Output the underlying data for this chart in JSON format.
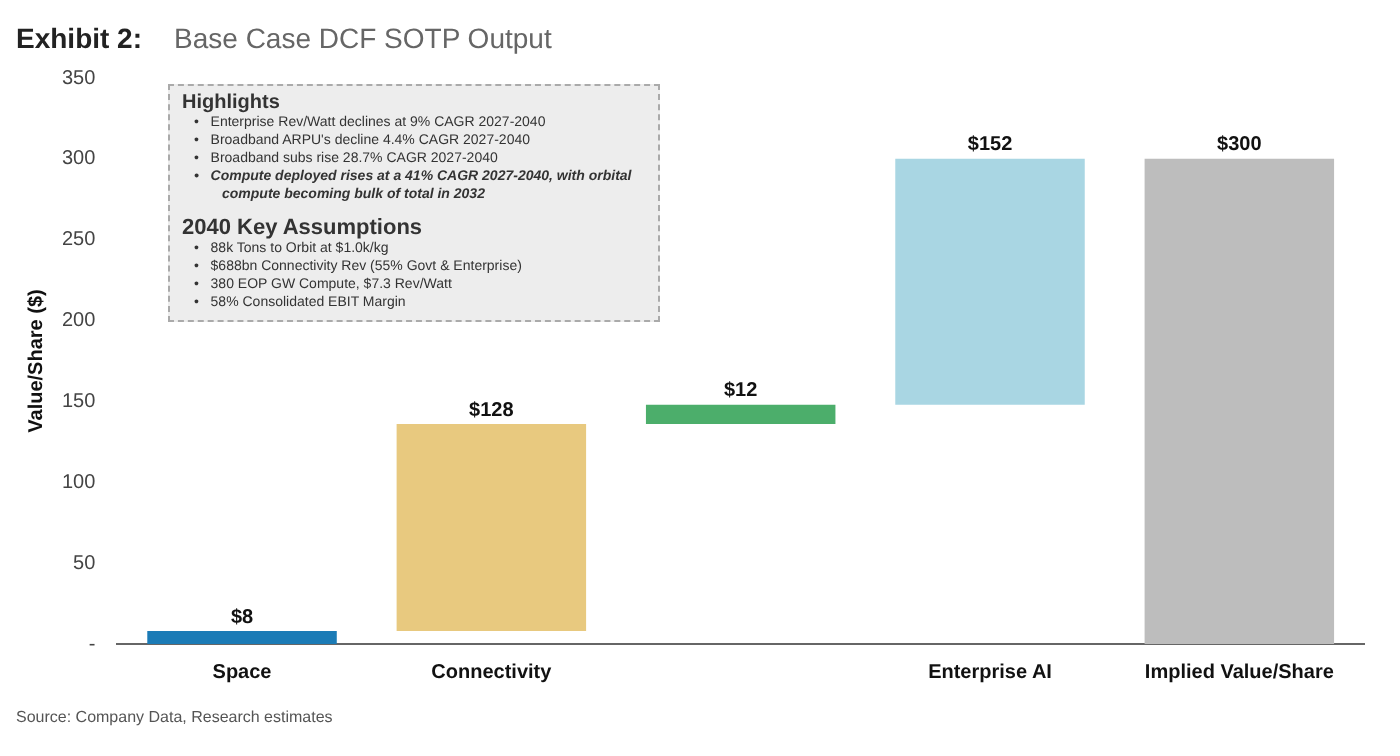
{
  "chart_data": {
    "type": "bar",
    "title": "Exhibit 2:",
    "subtitle": "Base Case DCF SOTP Output",
    "ylabel": "Value/Share ($)",
    "categories": [
      "Space",
      "Connectivity",
      null,
      "Enterprise AI",
      "Implied Value/Share"
    ],
    "values": [
      8,
      128,
      12,
      152,
      300
    ],
    "base": [
      0,
      8,
      136,
      148,
      0
    ],
    "colors": [
      "#1b7bb6",
      "#e8c97f",
      "#4cae6b",
      "#a9d6e3",
      "#bdbdbd"
    ],
    "value_labels": [
      "$8",
      "$128",
      "$12",
      "$152",
      "$300"
    ],
    "ylim": [
      0,
      350
    ],
    "yticks": [
      {
        "value": 0,
        "label": "-"
      },
      50,
      100,
      150,
      200,
      250,
      300,
      350
    ],
    "grid": false,
    "legend": false,
    "annotations": [
      "Highlights",
      "•   Enterprise Rev/Watt declines at 9% CAGR 2027-2040",
      "•   Broadband ARPU's decline 4.4% CAGR 2027-2040",
      "•   Broadband subs rise 28.7% CAGR 2027-2040",
      "•   Compute deployed rises at a 41% CAGR 2027-2040, with orbital compute becoming bulk of total in 2032",
      "2040 Key Assumptions",
      "•   88k Tons to Orbit at $1.0k/kg",
      "•   $688bn Connectivity Rev (55% Govt & Enterprise)",
      "•   380 EOP GW Compute, $7.3 Rev/Watt",
      "•   58% Consolidated EBIT Margin",
      "Source: Company Data, Research estimates"
    ]
  }
}
